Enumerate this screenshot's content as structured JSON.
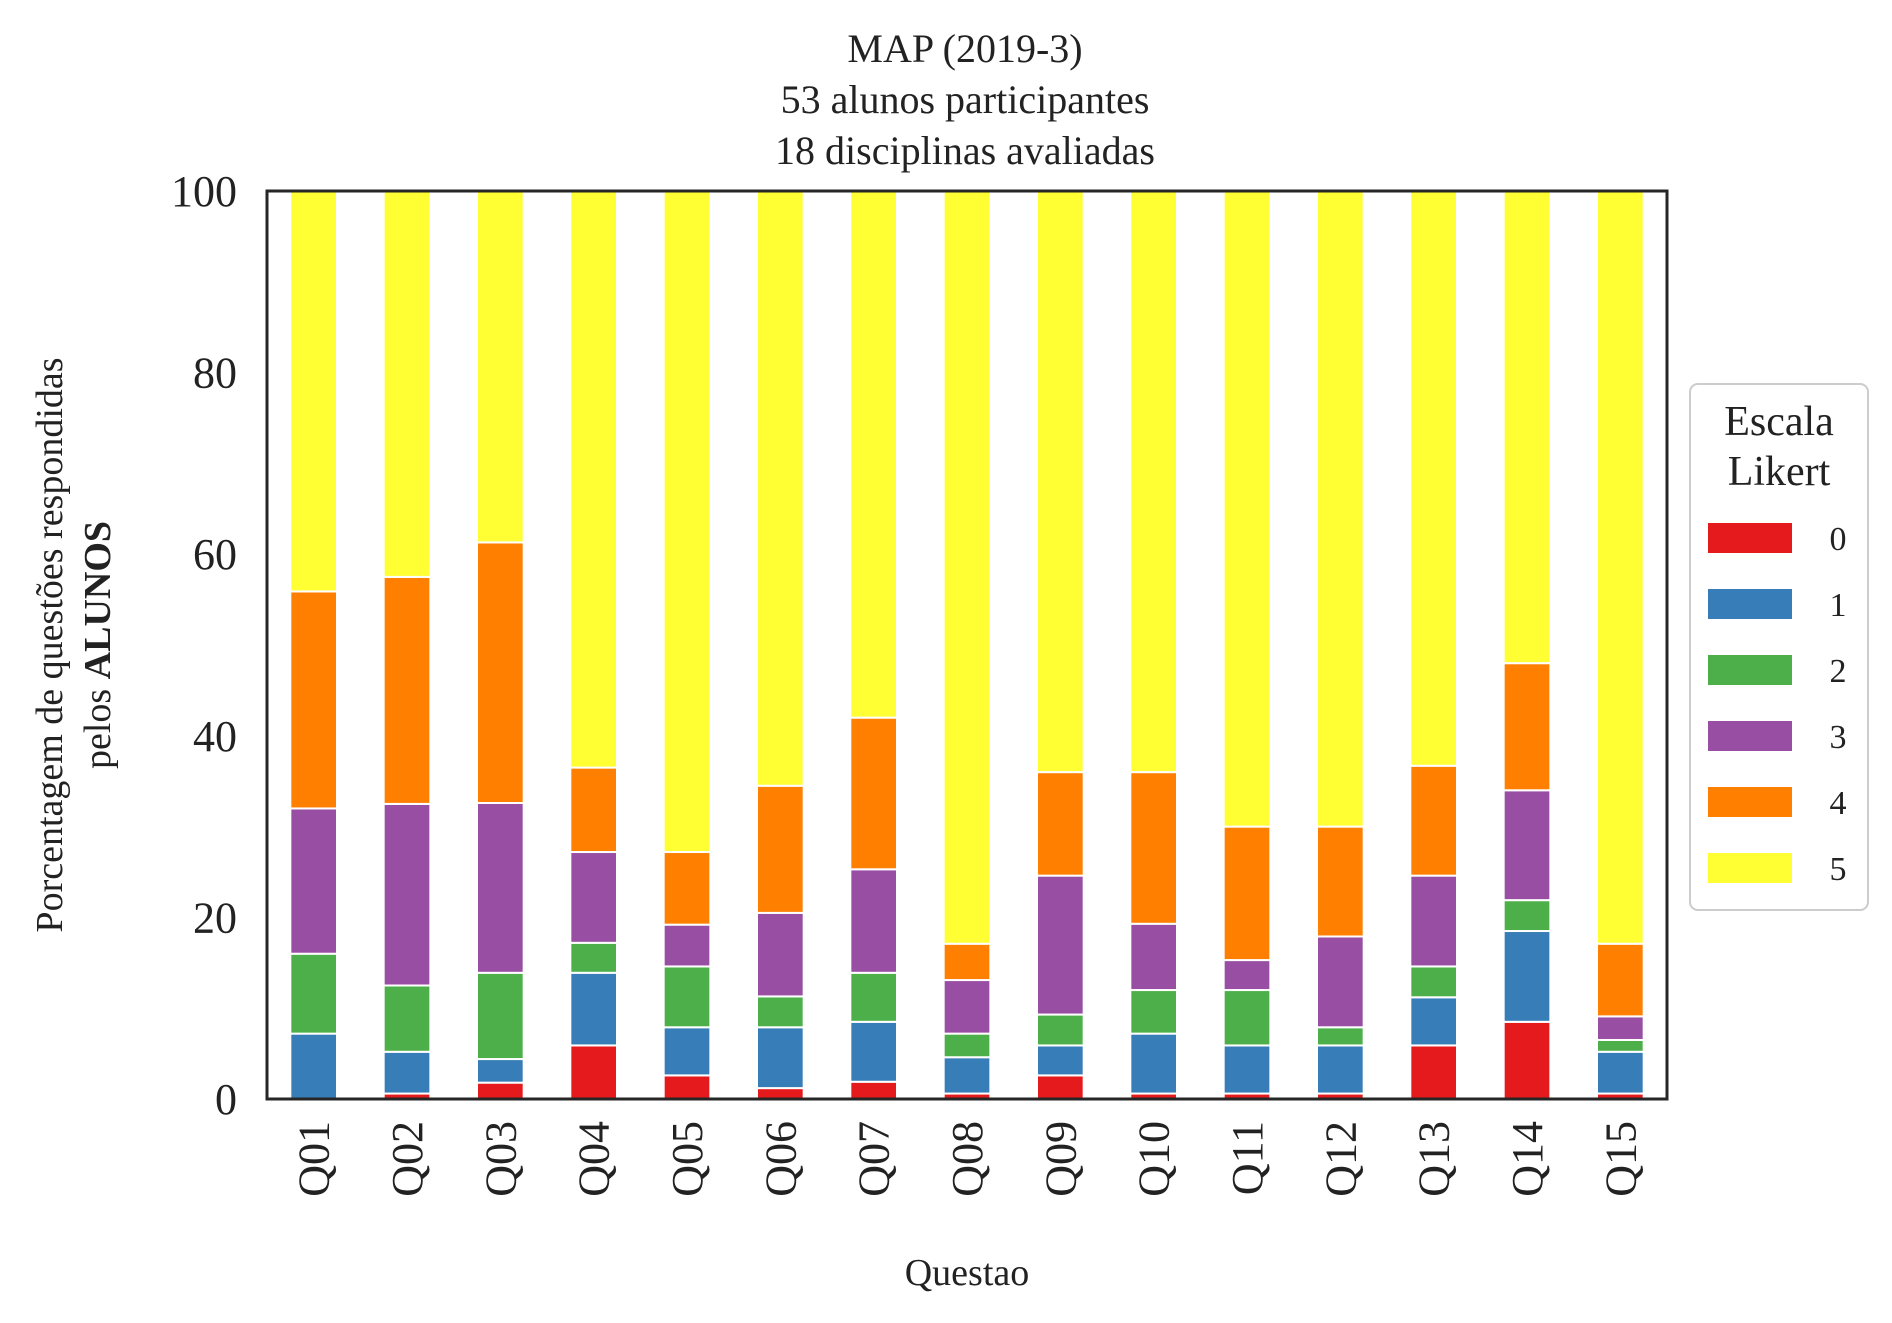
{
  "chart_data": {
    "type": "bar",
    "stacked": true,
    "title": [
      "MAP (2019-3)",
      "53 alunos participantes",
      "18 disciplinas avaliadas"
    ],
    "xlabel": "Questao",
    "ylabel": {
      "line1": "Porcentagem de questões respondidas",
      "line2_prefix": "pelos ",
      "line2_bold": "ALUNOS"
    },
    "ylim": [
      0,
      100
    ],
    "yticks": [
      0,
      20,
      40,
      60,
      80,
      100
    ],
    "grid": false,
    "categories": [
      "Q01",
      "Q02",
      "Q03",
      "Q04",
      "Q05",
      "Q06",
      "Q07",
      "Q08",
      "Q09",
      "Q10",
      "Q11",
      "Q12",
      "Q13",
      "Q14",
      "Q15"
    ],
    "legend": {
      "title": [
        "Escala",
        "Likert"
      ],
      "placement": "center-right outside"
    },
    "series": [
      {
        "name": "0",
        "color": "#e41a1c",
        "values": [
          0,
          0.6,
          1.8,
          5.9,
          2.6,
          1.2,
          1.9,
          0.6,
          2.6,
          0.6,
          0.6,
          0.6,
          5.9,
          8.5,
          0.6
        ]
      },
      {
        "name": "1",
        "color": "#377eb8",
        "values": [
          7.2,
          4.6,
          2.6,
          8.0,
          5.3,
          6.7,
          6.6,
          4.0,
          3.3,
          6.6,
          5.3,
          5.3,
          5.3,
          10.0,
          4.6
        ]
      },
      {
        "name": "2",
        "color": "#4daf4a",
        "values": [
          8.8,
          7.3,
          9.5,
          3.3,
          6.7,
          3.4,
          5.4,
          2.6,
          3.4,
          4.8,
          6.1,
          2.0,
          3.4,
          3.4,
          1.3
        ]
      },
      {
        "name": "3",
        "color": "#984ea3",
        "values": [
          16.0,
          20.0,
          18.7,
          10.0,
          4.6,
          9.2,
          11.4,
          5.9,
          15.3,
          7.3,
          3.3,
          10.0,
          10.0,
          12.1,
          2.6
        ]
      },
      {
        "name": "4",
        "color": "#ff7f00",
        "values": [
          23.9,
          25.0,
          28.7,
          9.3,
          8.0,
          14.0,
          16.7,
          4.0,
          11.4,
          16.7,
          14.7,
          12.1,
          12.1,
          14.0,
          8.0
        ]
      },
      {
        "name": "5",
        "color": "#ffff33",
        "values": [
          44.1,
          42.5,
          38.7,
          63.5,
          72.8,
          65.5,
          58.0,
          82.9,
          64.0,
          64.0,
          70.0,
          70.0,
          63.3,
          52.0,
          82.9
        ]
      }
    ]
  }
}
